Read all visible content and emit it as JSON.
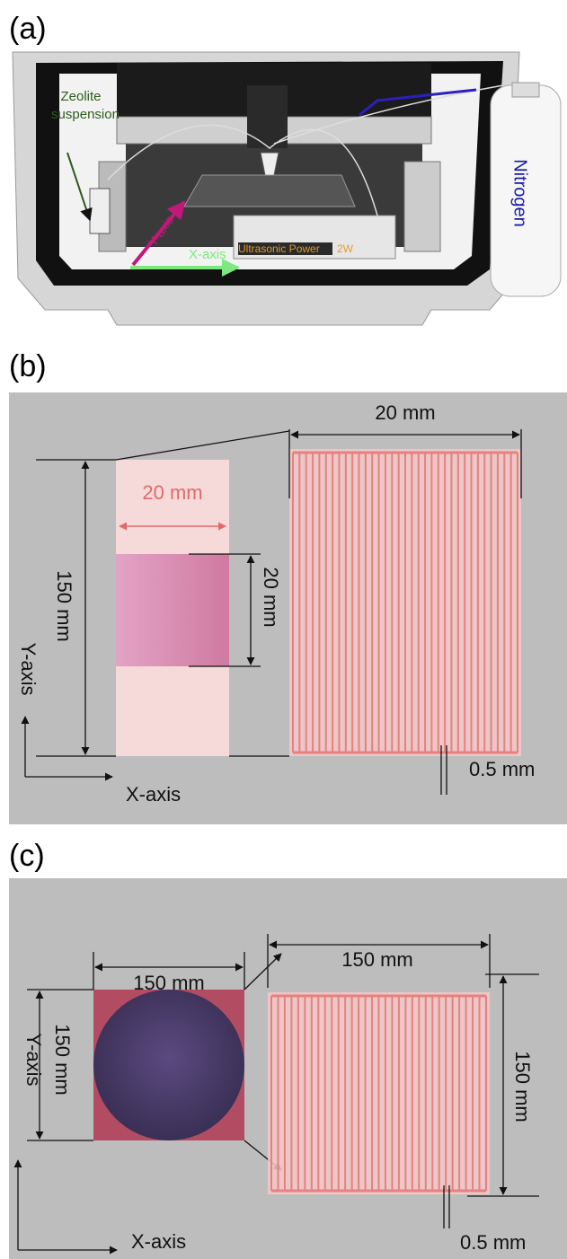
{
  "panels": [
    {
      "label": "(a)",
      "suspension": [
        "Zeolite",
        "suspension"
      ],
      "gas": "Nitrogen",
      "y_axis": "Y-axis",
      "x_axis": "X-axis",
      "device": "Ultrasonic Power",
      "power": "2W"
    },
    {
      "label": "(b)",
      "meander_width": "20 mm",
      "sample_width": "20 mm",
      "sample_height": "20 mm",
      "strip_height": "150 mm",
      "y_axis": "Y-axis",
      "x_axis": "X-axis",
      "gap": "0.5 mm"
    },
    {
      "label": "(c)",
      "sample_width": "150 mm",
      "sample_height": "150 mm",
      "meander_width": "150 mm",
      "meander_height": "150 mm",
      "y_axis": "Y-axis",
      "x_axis": "X-axis",
      "gap": "0.5 mm"
    }
  ]
}
